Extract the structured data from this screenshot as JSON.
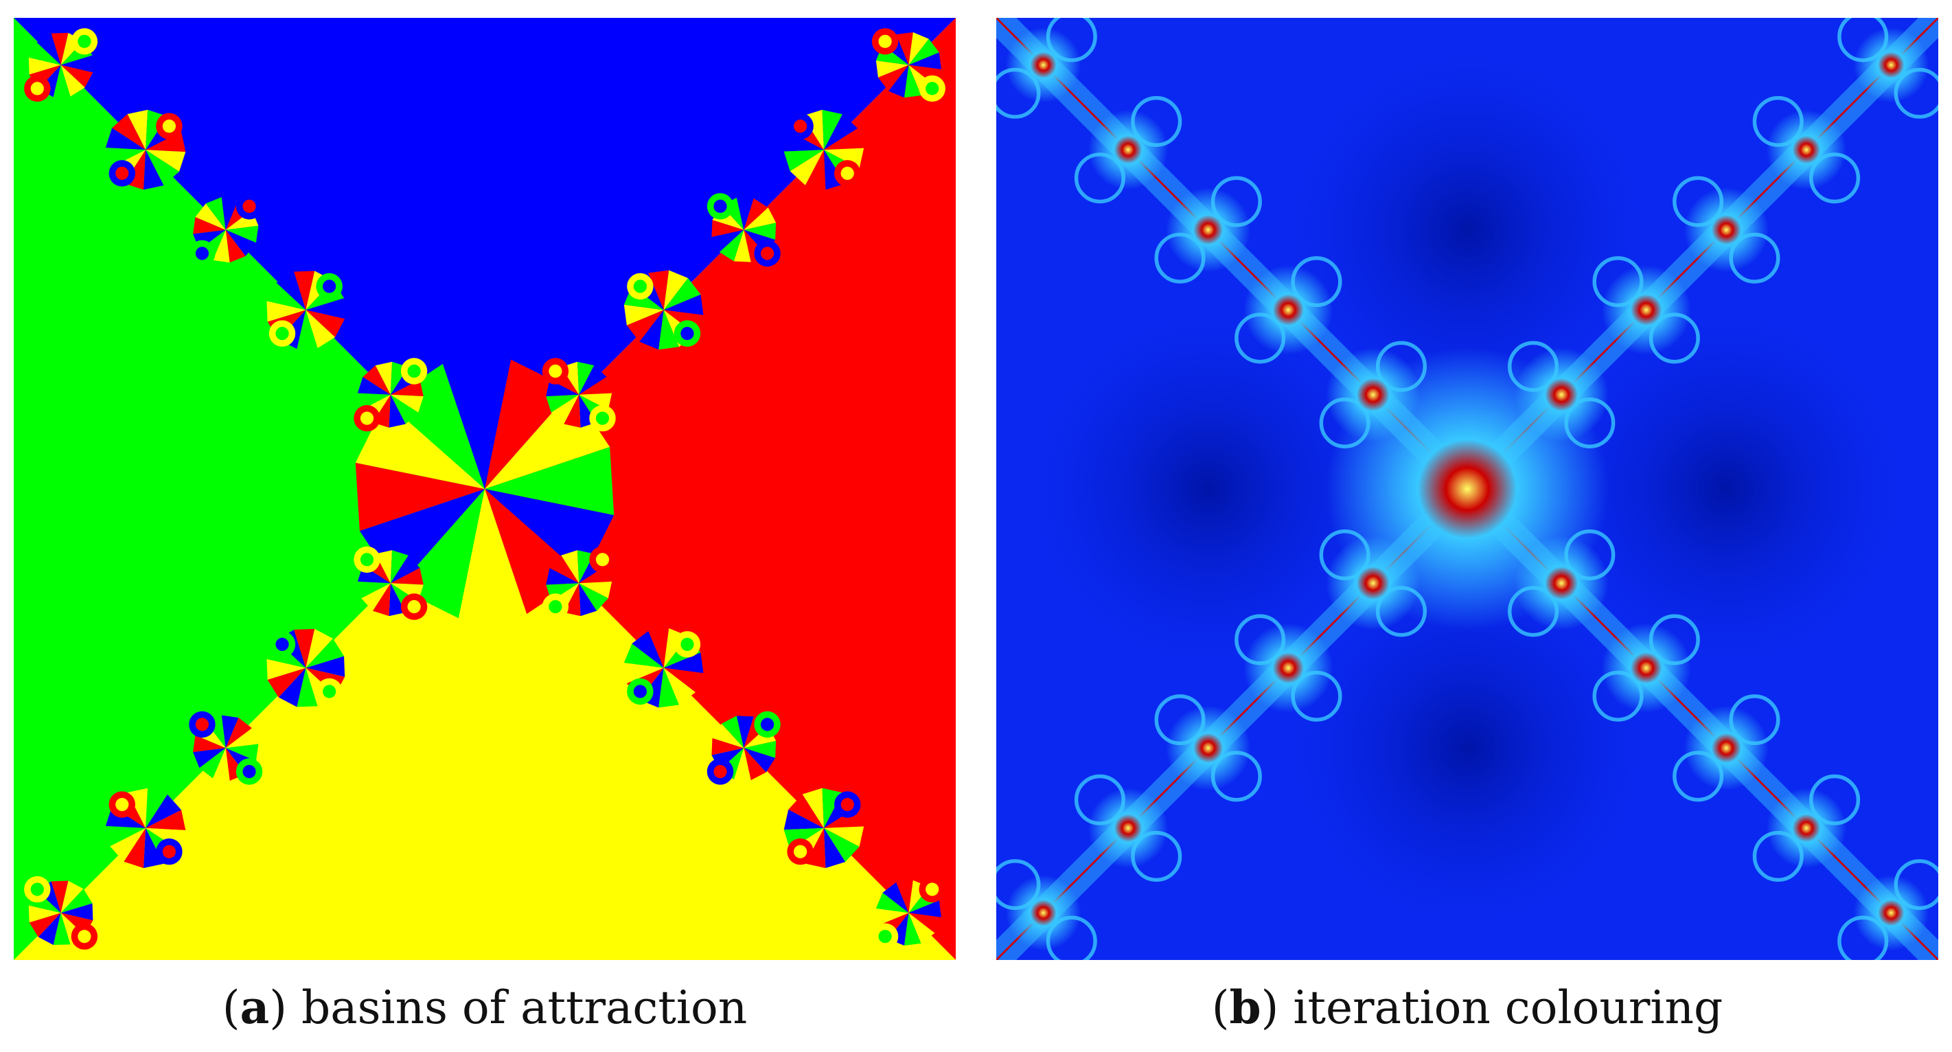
{
  "figures": [
    {
      "id": "a",
      "label": "a",
      "caption": "basins of attraction"
    },
    {
      "id": "b",
      "label": "b",
      "caption": "iteration colouring"
    }
  ],
  "colors": {
    "basin_top": "#0000ff",
    "basin_right": "#ff0000",
    "basin_bottom": "#ffff00",
    "basin_left": "#00ff00",
    "iter_background": "#0a28f0",
    "iter_deep": "#0014a8",
    "iter_glow": "#38c8ff",
    "iter_core": "#cc0000"
  }
}
